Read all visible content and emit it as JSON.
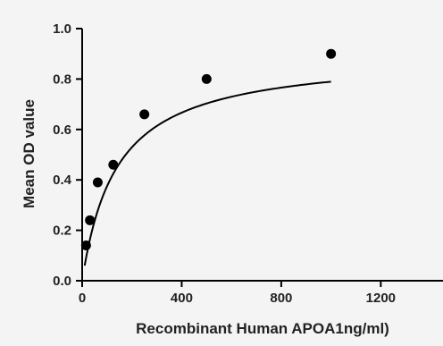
{
  "chart_data": {
    "type": "scatter",
    "title": "",
    "xlabel": "Recombinant Human APOA1ng/ml)",
    "ylabel": "Mean OD value",
    "xlim": [
      0,
      1450
    ],
    "ylim": [
      0,
      1.0
    ],
    "xticks": [
      0,
      400,
      800,
      1200
    ],
    "yticks": [
      0.0,
      0.2,
      0.4,
      0.6,
      0.8,
      1.0
    ],
    "xtick_labels": [
      "0",
      "400",
      "800",
      "1200"
    ],
    "ytick_labels": [
      "0.0",
      "0.2",
      "0.4",
      "0.6",
      "0.8",
      "1.0"
    ],
    "grid": false,
    "legend": "none",
    "series": [
      {
        "points": [
          {
            "x": 15.6,
            "y": 0.14
          },
          {
            "x": 31.2,
            "y": 0.24
          },
          {
            "x": 62.5,
            "y": 0.39
          },
          {
            "x": 125,
            "y": 0.46
          },
          {
            "x": 250,
            "y": 0.66
          },
          {
            "x": 500,
            "y": 0.8
          },
          {
            "x": 1000,
            "y": 0.9
          }
        ]
      }
    ],
    "fit_curve": {
      "type": "saturation",
      "max": 0.9,
      "half": 140,
      "x_range": [
        10,
        1000
      ]
    },
    "colors": {
      "marker": "#000000",
      "line": "#000000",
      "background": "#f4f4f4"
    }
  }
}
